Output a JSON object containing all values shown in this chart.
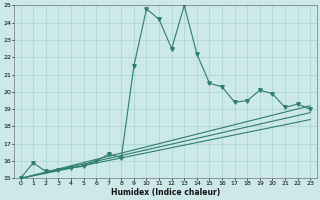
{
  "xlabel": "Humidex (Indice chaleur)",
  "xlim": [
    -0.5,
    23.5
  ],
  "ylim": [
    15,
    25
  ],
  "xticks": [
    0,
    1,
    2,
    3,
    4,
    5,
    6,
    7,
    8,
    9,
    10,
    11,
    12,
    13,
    14,
    15,
    16,
    17,
    18,
    19,
    20,
    21,
    22,
    23
  ],
  "yticks": [
    15,
    16,
    17,
    18,
    19,
    20,
    21,
    22,
    23,
    24,
    25
  ],
  "bg_color": "#cce8e8",
  "line_color": "#2e7d6e",
  "grid_color": "#aad4cc",
  "lines": [
    {
      "x": [
        0,
        1,
        2,
        3,
        4,
        5,
        6,
        7,
        8,
        9,
        10,
        11,
        12,
        13,
        14,
        15,
        16,
        17,
        18,
        19,
        20,
        21,
        22,
        23
      ],
      "y": [
        15.0,
        15.9,
        15.4,
        15.5,
        15.6,
        15.7,
        16.0,
        16.4,
        16.2,
        21.5,
        24.8,
        24.2,
        22.5,
        25.0,
        22.2,
        20.5,
        20.3,
        19.4,
        19.5,
        20.1,
        19.9,
        19.1,
        19.3,
        19.0
      ],
      "marker": true
    },
    {
      "x": [
        0,
        23
      ],
      "y": [
        15.0,
        19.2
      ],
      "marker": false
    },
    {
      "x": [
        0,
        23
      ],
      "y": [
        15.0,
        18.8
      ],
      "marker": false
    },
    {
      "x": [
        0,
        23
      ],
      "y": [
        15.0,
        18.4
      ],
      "marker": false
    }
  ]
}
